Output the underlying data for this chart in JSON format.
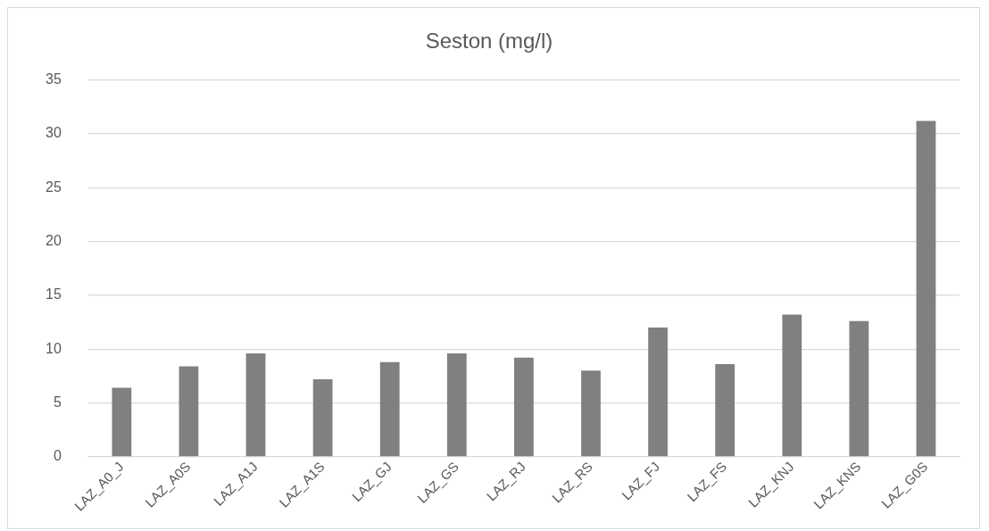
{
  "chart_data": {
    "type": "bar",
    "title": "Seston (mg/l)",
    "categories": [
      "LAZ_A0_J",
      "LAZ_A0S",
      "LAZ_A1J",
      "LAZ_A1S",
      "LAZ_GJ",
      "LAZ_GS",
      "LAZ_RJ",
      "LAZ_RS",
      "LAZ_FJ",
      "LAZ_FS",
      "LAZ_KNJ",
      "LAZ_KNS",
      "LAZ_G0S"
    ],
    "values": [
      6.4,
      8.4,
      9.6,
      7.2,
      8.8,
      9.6,
      9.2,
      8.0,
      12.0,
      8.6,
      13.2,
      12.6,
      31.2
    ],
    "color": "#808080",
    "ylim": [
      0,
      35
    ],
    "yticks": [
      0,
      5,
      10,
      15,
      20,
      25,
      30,
      35
    ],
    "grid": "y",
    "legend": false
  }
}
